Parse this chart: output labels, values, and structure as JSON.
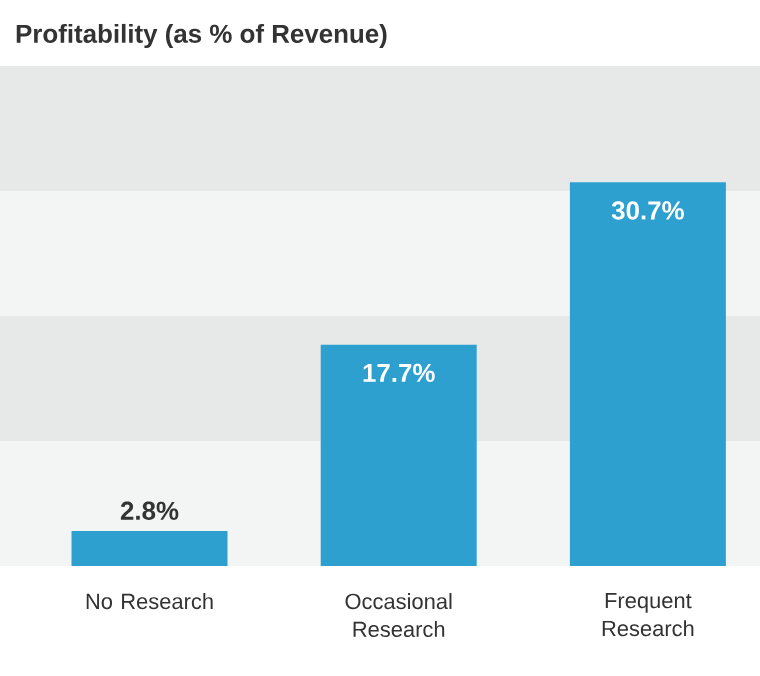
{
  "chart_data": {
    "type": "bar",
    "title": "Profitability (as % of Revenue)",
    "categories": [
      "No Research",
      "Occasional Research",
      "Frequent Research"
    ],
    "values": [
      2.8,
      17.7,
      30.7
    ],
    "value_labels": [
      "2.8%",
      "17.7%",
      "30.7%"
    ],
    "color": "#2ea0d0",
    "ylim": [
      0,
      40
    ],
    "tick_labels": "x",
    "bands": [
      {
        "axis": "y",
        "from": 0,
        "to": 10,
        "color": "#f3f5f4"
      },
      {
        "axis": "y",
        "from": 10,
        "to": 20,
        "color": "#e7e9e8"
      },
      {
        "axis": "y",
        "from": 20,
        "to": 30,
        "color": "#f3f5f4"
      },
      {
        "axis": "y",
        "from": 30,
        "to": 40,
        "color": "#e7e9e8"
      }
    ]
  }
}
